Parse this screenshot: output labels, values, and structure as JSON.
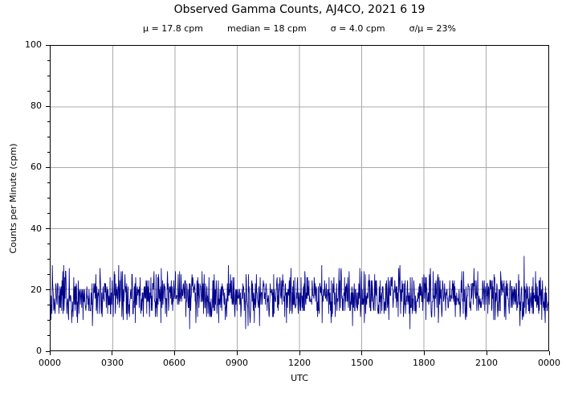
{
  "figure": {
    "background": "#ffffff",
    "text_color": "#000000"
  },
  "chart_data": {
    "type": "line",
    "title": "Observed Gamma Counts, AJ4CO, 2021 6 19",
    "subtitle_stats": {
      "mu": "μ = 17.8 cpm",
      "median": "median = 18 cpm",
      "sigma": "σ = 4.0 cpm",
      "ratio": "σ/μ = 23%"
    },
    "xlabel": "UTC",
    "ylabel": "Counts per Minute (cpm)",
    "xlim_hours": [
      0,
      24
    ],
    "ylim": [
      0,
      100
    ],
    "x_tick_hours": [
      0,
      3,
      6,
      9,
      12,
      15,
      18,
      21,
      24
    ],
    "x_tick_labels": [
      "0000",
      "0300",
      "0600",
      "0900",
      "1200",
      "1500",
      "1800",
      "2100",
      "0000"
    ],
    "y_tick_values": [
      0,
      20,
      40,
      60,
      80,
      100
    ],
    "y_tick_labels": [
      "0",
      "20",
      "40",
      "60",
      "80",
      "100"
    ],
    "y_minor_tick_step": 5,
    "grid": true,
    "grid_color": "#AAAAAA",
    "line_color": "#00008B",
    "axis_color": "#000000",
    "series": {
      "name": "observed gamma counts",
      "units": "counts per minute (cpm)",
      "sample_interval_minutes": 1,
      "n_points": 1440,
      "mean_cpm": 17.8,
      "median_cpm": 18,
      "sigma_cpm": 4.0,
      "min_cpm": 7,
      "max_cpm": 31,
      "distribution": "poisson-like integer counts fluctuating about the mean",
      "seed": 20210619
    }
  }
}
